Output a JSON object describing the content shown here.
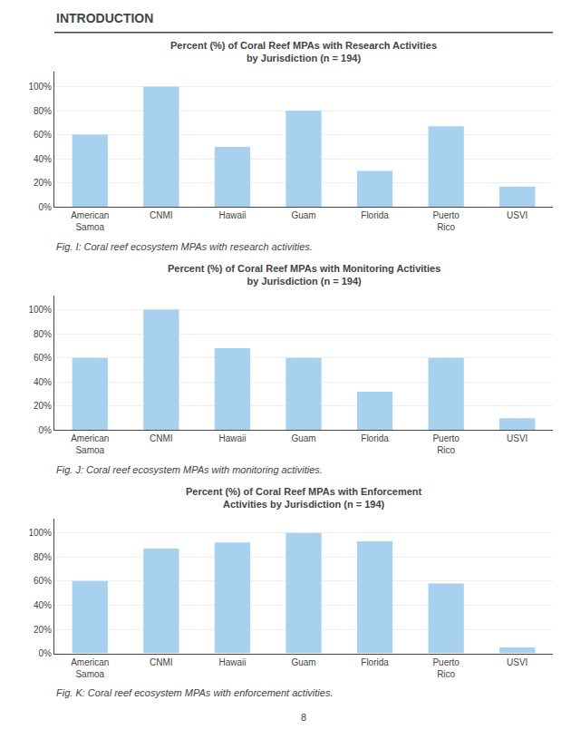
{
  "header": "INTRODUCTION",
  "page_number": "8",
  "chart_data": [
    {
      "type": "bar",
      "title": "Percent (%) of Coral Reef MPAs with Research Activities\nby Jurisdiction (n = 194)",
      "categories": [
        "American\nSamoa",
        "CNMI",
        "Hawaii",
        "Guam",
        "Florida",
        "Puerto\nRico",
        "USVI"
      ],
      "values": [
        60,
        100,
        50,
        80,
        30,
        67,
        17
      ],
      "color": "#a8d1f0",
      "ylim": [
        0,
        112
      ],
      "yticks": [
        {
          "value": 0,
          "label": "0%"
        },
        {
          "value": 20,
          "label": "20%"
        },
        {
          "value": 40,
          "label": "40%"
        },
        {
          "value": 60,
          "label": "60%"
        },
        {
          "value": 80,
          "label": "80%"
        },
        {
          "value": 100,
          "label": "100%"
        }
      ],
      "grid": true,
      "caption": "Fig. I: Coral reef ecosystem MPAs with research activities."
    },
    {
      "type": "bar",
      "title": "Percent (%) of Coral Reef MPAs with Monitoring Activities\nby Jurisdiction (n = 194)",
      "categories": [
        "American\nSamoa",
        "CNMI",
        "Hawaii",
        "Guam",
        "Florida",
        "Puerto\nRico",
        "USVI"
      ],
      "values": [
        60,
        100,
        68,
        60,
        32,
        60,
        10
      ],
      "color": "#a8d1f0",
      "ylim": [
        0,
        112
      ],
      "yticks": [
        {
          "value": 0,
          "label": "0%"
        },
        {
          "value": 20,
          "label": "20%"
        },
        {
          "value": 40,
          "label": "40%"
        },
        {
          "value": 60,
          "label": "60%"
        },
        {
          "value": 80,
          "label": "80%"
        },
        {
          "value": 100,
          "label": "100%"
        }
      ],
      "grid": true,
      "caption": "Fig. J: Coral reef ecosystem MPAs with monitoring activities."
    },
    {
      "type": "bar",
      "title": "Percent (%) of Coral Reef MPAs with Enforcement\nActivities by Jurisdiction (n = 194)",
      "categories": [
        "American\nSamoa",
        "CNMI",
        "Hawaii",
        "Guam",
        "Florida",
        "Puerto\nRico",
        "USVI"
      ],
      "values": [
        60,
        87,
        92,
        100,
        93,
        58,
        5
      ],
      "color": "#a8d1f0",
      "ylim": [
        0,
        112
      ],
      "yticks": [
        {
          "value": 0,
          "label": "0%"
        },
        {
          "value": 20,
          "label": "20%"
        },
        {
          "value": 40,
          "label": "40%"
        },
        {
          "value": 60,
          "label": "60%"
        },
        {
          "value": 80,
          "label": "80%"
        },
        {
          "value": 100,
          "label": "100%"
        }
      ],
      "grid": true,
      "caption": "Fig. K: Coral reef ecosystem MPAs with enforcement activities."
    }
  ]
}
